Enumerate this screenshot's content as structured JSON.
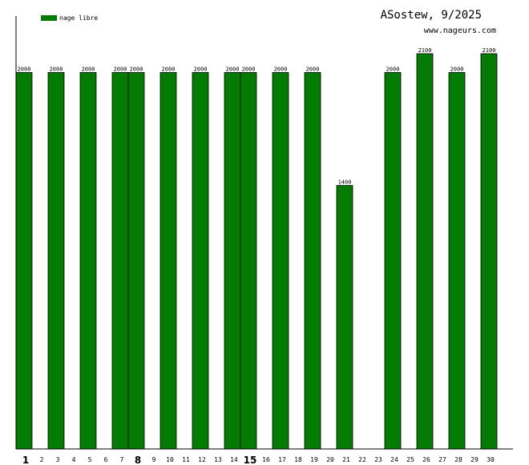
{
  "header": {
    "title": "ASostew, 9/2025",
    "site": "www.nageurs.com"
  },
  "colors": {
    "bar": "#047c04",
    "axis": "#000000",
    "background": "#ffffff"
  },
  "chart_data": {
    "type": "bar",
    "categories": [
      "1",
      "2",
      "3",
      "4",
      "5",
      "6",
      "7",
      "8",
      "9",
      "10",
      "11",
      "12",
      "13",
      "14",
      "15",
      "16",
      "17",
      "18",
      "19",
      "20",
      "21",
      "22",
      "23",
      "24",
      "25",
      "26",
      "27",
      "28",
      "29",
      "30"
    ],
    "emphasized_categories": [
      "1",
      "8",
      "15"
    ],
    "series": [
      {
        "name": "nage libre",
        "values": [
          2000,
          0,
          2000,
          0,
          2000,
          0,
          2000,
          2000,
          0,
          2000,
          0,
          2000,
          0,
          2000,
          2000,
          0,
          2000,
          0,
          2000,
          0,
          1400,
          0,
          0,
          2000,
          0,
          2100,
          0,
          2000,
          0,
          2100
        ]
      }
    ],
    "ylim": [
      0,
      2300
    ],
    "grid": false,
    "legend_position": "top-left"
  }
}
